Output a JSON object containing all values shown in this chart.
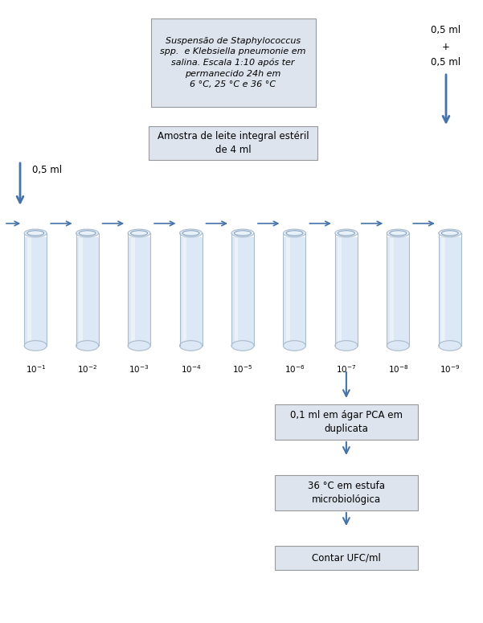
{
  "bg_color": "#ffffff",
  "arrow_color": "#4472aa",
  "box_edge_color": "#999999",
  "box_face_color": "#dde4ee",
  "tube_fill_color": "#dce8f5",
  "tube_highlight_color": "#eef4fb",
  "tube_edge_color": "#aabbcc",
  "tube_top_edge_color": "#7799bb",
  "text_color": "#000000",
  "top_box1_text": "Suspensão de Staphylococcus\nspp.  e Klebsiella pneumonie em\nsalina. Escala 1:10 após ter\npermanecido 24h em\n6 °C, 25 °C e 36 °C",
  "top_box2_text": "Amostra de leite integral estéril\nde 4 ml",
  "right_label1": "0,5 ml",
  "right_label2": "+",
  "right_label3": "0,5 ml",
  "left_arrow_label": "0,5 ml",
  "tube_exponents": [
    "-1",
    "-2",
    "-3",
    "-4",
    "-5",
    "-6",
    "-7",
    "-8",
    "-9"
  ],
  "bottom_box1_text": "0,1 ml em ágar PCA em\nduplicata",
  "bottom_box2_text": "36 °C em estufa\nmicrobiológica",
  "bottom_box3_text": "Contar UFC/ml",
  "n_tubes": 9,
  "figsize": [
    6.01,
    7.75
  ],
  "dpi": 100
}
